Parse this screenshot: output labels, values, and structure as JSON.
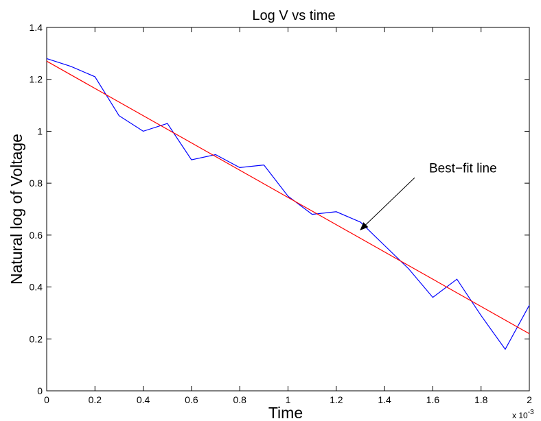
{
  "chart_data": {
    "type": "line",
    "title": "Log V vs time",
    "xlabel": "Time",
    "ylabel": "Natural log of Voltage",
    "x_multiplier": {
      "prefix": "x 10",
      "exponent": "-3"
    },
    "xlim": [
      0,
      2
    ],
    "ylim": [
      0,
      1.4
    ],
    "x_ticks": [
      "0",
      "0.2",
      "0.4",
      "0.6",
      "0.8",
      "1",
      "1.2",
      "1.4",
      "1.6",
      "1.8",
      "2"
    ],
    "y_ticks": [
      "0",
      "0.2",
      "0.4",
      "0.6",
      "0.8",
      "1",
      "1.2",
      "1.4"
    ],
    "grid": false,
    "series": [
      {
        "color": "#0000ff",
        "x": [
          0,
          0.1,
          0.2,
          0.3,
          0.4,
          0.5,
          0.6,
          0.7,
          0.8,
          0.9,
          1.0,
          1.1,
          1.2,
          1.3,
          1.4,
          1.5,
          1.6,
          1.7,
          1.8,
          1.9,
          2.0
        ],
        "y": [
          1.28,
          1.25,
          1.21,
          1.06,
          1.0,
          1.03,
          0.89,
          0.91,
          0.86,
          0.87,
          0.75,
          0.68,
          0.69,
          0.65,
          0.56,
          0.47,
          0.36,
          0.43,
          0.29,
          0.16,
          0.33
        ]
      },
      {
        "color": "#ff0000",
        "x": [
          0,
          2.0
        ],
        "y": [
          1.27,
          0.22
        ]
      }
    ],
    "annotations": [
      {
        "text": "Best−fit line",
        "arrow_to": [
          1.3,
          0.62
        ]
      }
    ]
  }
}
